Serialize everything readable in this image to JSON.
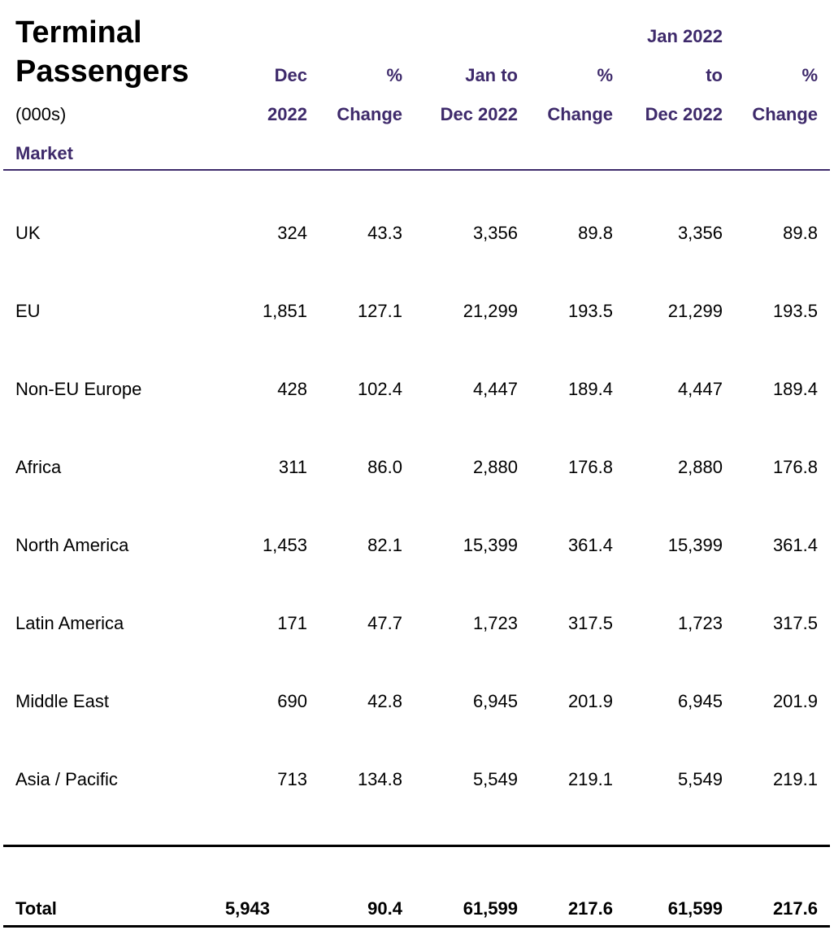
{
  "table": {
    "title_line1": "Terminal",
    "title_line2": "Passengers",
    "units": "(000s)",
    "market_header": "Market",
    "col_headers": [
      [
        "Dec",
        "2022"
      ],
      [
        "%",
        "Change"
      ],
      [
        "Jan to",
        "Dec 2022"
      ],
      [
        "%",
        "Change"
      ],
      [
        "Jan 2022",
        "to",
        "Dec 2022"
      ],
      [
        "%",
        "Change"
      ]
    ],
    "rows": [
      {
        "market": "UK",
        "values": [
          "324",
          "43.3",
          "3,356",
          "89.8",
          "3,356",
          "89.8"
        ]
      },
      {
        "market": "EU",
        "values": [
          "1,851",
          "127.1",
          "21,299",
          "193.5",
          "21,299",
          "193.5"
        ]
      },
      {
        "market": "Non-EU Europe",
        "values": [
          "428",
          "102.4",
          "4,447",
          "189.4",
          "4,447",
          "189.4"
        ]
      },
      {
        "market": "Africa",
        "values": [
          "311",
          "86.0",
          "2,880",
          "176.8",
          "2,880",
          "176.8"
        ]
      },
      {
        "market": "North America",
        "values": [
          "1,453",
          "82.1",
          "15,399",
          "361.4",
          "15,399",
          "361.4"
        ]
      },
      {
        "market": "Latin America",
        "values": [
          "171",
          "47.7",
          "1,723",
          "317.5",
          "1,723",
          "317.5"
        ]
      },
      {
        "market": "Middle East",
        "values": [
          "690",
          "42.8",
          "6,945",
          "201.9",
          "6,945",
          "201.9"
        ]
      },
      {
        "market": "Asia / Pacific",
        "values": [
          "713",
          "134.8",
          "5,549",
          "219.1",
          "5,549",
          "219.1"
        ]
      }
    ],
    "total": {
      "label": "Total",
      "values": [
        "5,943",
        "90.4",
        "61,599",
        "217.6",
        "61,599",
        "217.6"
      ]
    }
  },
  "colors": {
    "header_accent": "#3e2a6b",
    "text": "#000000"
  }
}
